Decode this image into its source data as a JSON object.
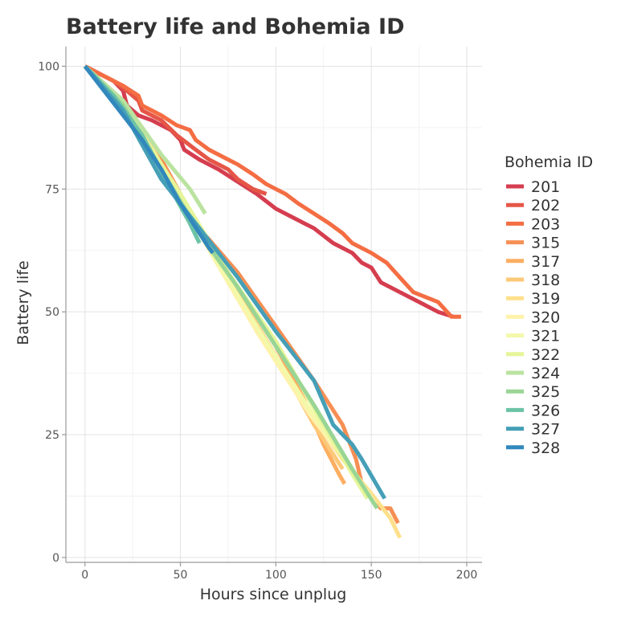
{
  "chart_data": {
    "type": "line",
    "title": "Battery life and Bohemia ID",
    "xlabel": "Hours since unplug",
    "ylabel": "Battery life",
    "xlim": [
      -10,
      208
    ],
    "ylim": [
      -1,
      104
    ],
    "x_ticks": [
      0,
      50,
      100,
      150,
      200
    ],
    "y_ticks": [
      0,
      25,
      50,
      75,
      100
    ],
    "grid": true,
    "legend_title": "Bohemia ID",
    "legend_position": "right",
    "series": [
      {
        "name": "201",
        "color": "#d53e4f",
        "points": [
          [
            0,
            100
          ],
          [
            15,
            97
          ],
          [
            20,
            95
          ],
          [
            22,
            92
          ],
          [
            28,
            90
          ],
          [
            35,
            89
          ],
          [
            45,
            87
          ],
          [
            50,
            85
          ],
          [
            52,
            83
          ],
          [
            60,
            81
          ],
          [
            70,
            79
          ],
          [
            78,
            77
          ],
          [
            90,
            74
          ],
          [
            100,
            71
          ],
          [
            110,
            69
          ],
          [
            120,
            67
          ],
          [
            130,
            64
          ],
          [
            140,
            62
          ],
          [
            145,
            60
          ],
          [
            150,
            59
          ],
          [
            155,
            56
          ],
          [
            165,
            54
          ],
          [
            175,
            52
          ],
          [
            185,
            50
          ],
          [
            193,
            49
          ]
        ]
      },
      {
        "name": "202",
        "color": "#e55647",
        "points": [
          [
            0,
            100
          ],
          [
            15,
            97
          ],
          [
            22,
            95
          ],
          [
            28,
            93
          ],
          [
            30,
            91
          ],
          [
            40,
            89
          ],
          [
            48,
            86
          ],
          [
            58,
            83
          ],
          [
            65,
            81
          ],
          [
            75,
            79
          ],
          [
            80,
            77
          ],
          [
            88,
            75
          ],
          [
            95,
            74
          ]
        ]
      },
      {
        "name": "203",
        "color": "#f46d43",
        "points": [
          [
            0,
            100
          ],
          [
            10,
            98
          ],
          [
            20,
            96
          ],
          [
            28,
            94
          ],
          [
            30,
            92
          ],
          [
            40,
            90
          ],
          [
            48,
            88
          ],
          [
            55,
            87
          ],
          [
            58,
            85
          ],
          [
            65,
            83
          ],
          [
            75,
            81
          ],
          [
            80,
            80
          ],
          [
            88,
            78
          ],
          [
            95,
            76
          ],
          [
            100,
            75
          ],
          [
            105,
            74
          ],
          [
            112,
            72
          ],
          [
            120,
            70
          ],
          [
            128,
            68
          ],
          [
            135,
            66
          ],
          [
            140,
            64
          ],
          [
            150,
            62
          ],
          [
            158,
            60
          ],
          [
            165,
            57
          ],
          [
            172,
            54
          ],
          [
            185,
            52
          ],
          [
            192,
            49
          ],
          [
            197,
            49
          ]
        ]
      },
      {
        "name": "315",
        "color": "#f68f54",
        "points": [
          [
            0,
            100
          ],
          [
            20,
            93
          ],
          [
            40,
            81
          ],
          [
            60,
            67
          ],
          [
            80,
            58
          ],
          [
            100,
            47
          ],
          [
            120,
            36
          ],
          [
            135,
            27
          ],
          [
            142,
            20
          ],
          [
            145,
            15
          ],
          [
            150,
            12
          ],
          [
            155,
            10
          ],
          [
            160,
            10
          ],
          [
            164,
            7
          ]
        ]
      },
      {
        "name": "317",
        "color": "#fdae61",
        "points": [
          [
            0,
            100
          ],
          [
            20,
            92
          ],
          [
            40,
            79
          ],
          [
            60,
            66
          ],
          [
            80,
            55
          ],
          [
            100,
            43
          ],
          [
            115,
            32
          ],
          [
            125,
            23
          ],
          [
            133,
            17
          ],
          [
            136,
            15
          ]
        ]
      },
      {
        "name": "318",
        "color": "#fdc878",
        "points": [
          [
            0,
            100
          ],
          [
            25,
            89
          ],
          [
            50,
            72
          ],
          [
            75,
            57
          ],
          [
            100,
            41
          ],
          [
            120,
            27
          ],
          [
            130,
            21
          ],
          [
            135,
            18
          ]
        ]
      },
      {
        "name": "319",
        "color": "#fee08b",
        "points": [
          [
            0,
            100
          ],
          [
            30,
            87
          ],
          [
            60,
            66
          ],
          [
            90,
            47
          ],
          [
            115,
            31
          ],
          [
            135,
            20
          ],
          [
            150,
            13
          ],
          [
            160,
            8
          ],
          [
            165,
            4
          ]
        ]
      },
      {
        "name": "320",
        "color": "#fff2aa",
        "points": [
          [
            0,
            100
          ],
          [
            30,
            86
          ],
          [
            60,
            66
          ],
          [
            90,
            46
          ],
          [
            118,
            29
          ],
          [
            140,
            18
          ],
          [
            152,
            11
          ]
        ]
      },
      {
        "name": "321",
        "color": "#f3f9a9",
        "points": [
          [
            0,
            100
          ],
          [
            30,
            86
          ],
          [
            60,
            66
          ],
          [
            90,
            47
          ],
          [
            118,
            30
          ],
          [
            138,
            19
          ],
          [
            150,
            12
          ]
        ]
      },
      {
        "name": "322",
        "color": "#e6f598",
        "points": [
          [
            0,
            100
          ],
          [
            25,
            89
          ],
          [
            50,
            74
          ],
          [
            75,
            58
          ],
          [
            100,
            44
          ],
          [
            125,
            27
          ],
          [
            140,
            17
          ],
          [
            148,
            12
          ]
        ]
      },
      {
        "name": "324",
        "color": "#bae3a0",
        "points": [
          [
            0,
            100
          ],
          [
            20,
            93
          ],
          [
            40,
            82
          ],
          [
            55,
            75
          ],
          [
            63,
            70
          ]
        ]
      },
      {
        "name": "325",
        "color": "#99d594",
        "points": [
          [
            0,
            100
          ],
          [
            20,
            92
          ],
          [
            40,
            79
          ],
          [
            60,
            66
          ],
          [
            80,
            55
          ],
          [
            100,
            43
          ],
          [
            120,
            31
          ],
          [
            140,
            18
          ],
          [
            153,
            10
          ]
        ]
      },
      {
        "name": "326",
        "color": "#6cc3a6",
        "points": [
          [
            0,
            100
          ],
          [
            15,
            94
          ],
          [
            30,
            86
          ],
          [
            45,
            75
          ],
          [
            55,
            68
          ],
          [
            60,
            64
          ]
        ]
      },
      {
        "name": "327",
        "color": "#459fb7",
        "points": [
          [
            0,
            100
          ],
          [
            20,
            91
          ],
          [
            40,
            77
          ],
          [
            60,
            67
          ],
          [
            80,
            57
          ],
          [
            100,
            46
          ],
          [
            120,
            36
          ],
          [
            130,
            27
          ],
          [
            140,
            23
          ],
          [
            145,
            20
          ],
          [
            157,
            12
          ]
        ]
      },
      {
        "name": "328",
        "color": "#3288bd",
        "points": [
          [
            0,
            100
          ],
          [
            10,
            95
          ],
          [
            20,
            90
          ],
          [
            30,
            85
          ],
          [
            40,
            79
          ],
          [
            50,
            72
          ],
          [
            60,
            66
          ],
          [
            65,
            63
          ],
          [
            67,
            62
          ]
        ]
      }
    ]
  }
}
